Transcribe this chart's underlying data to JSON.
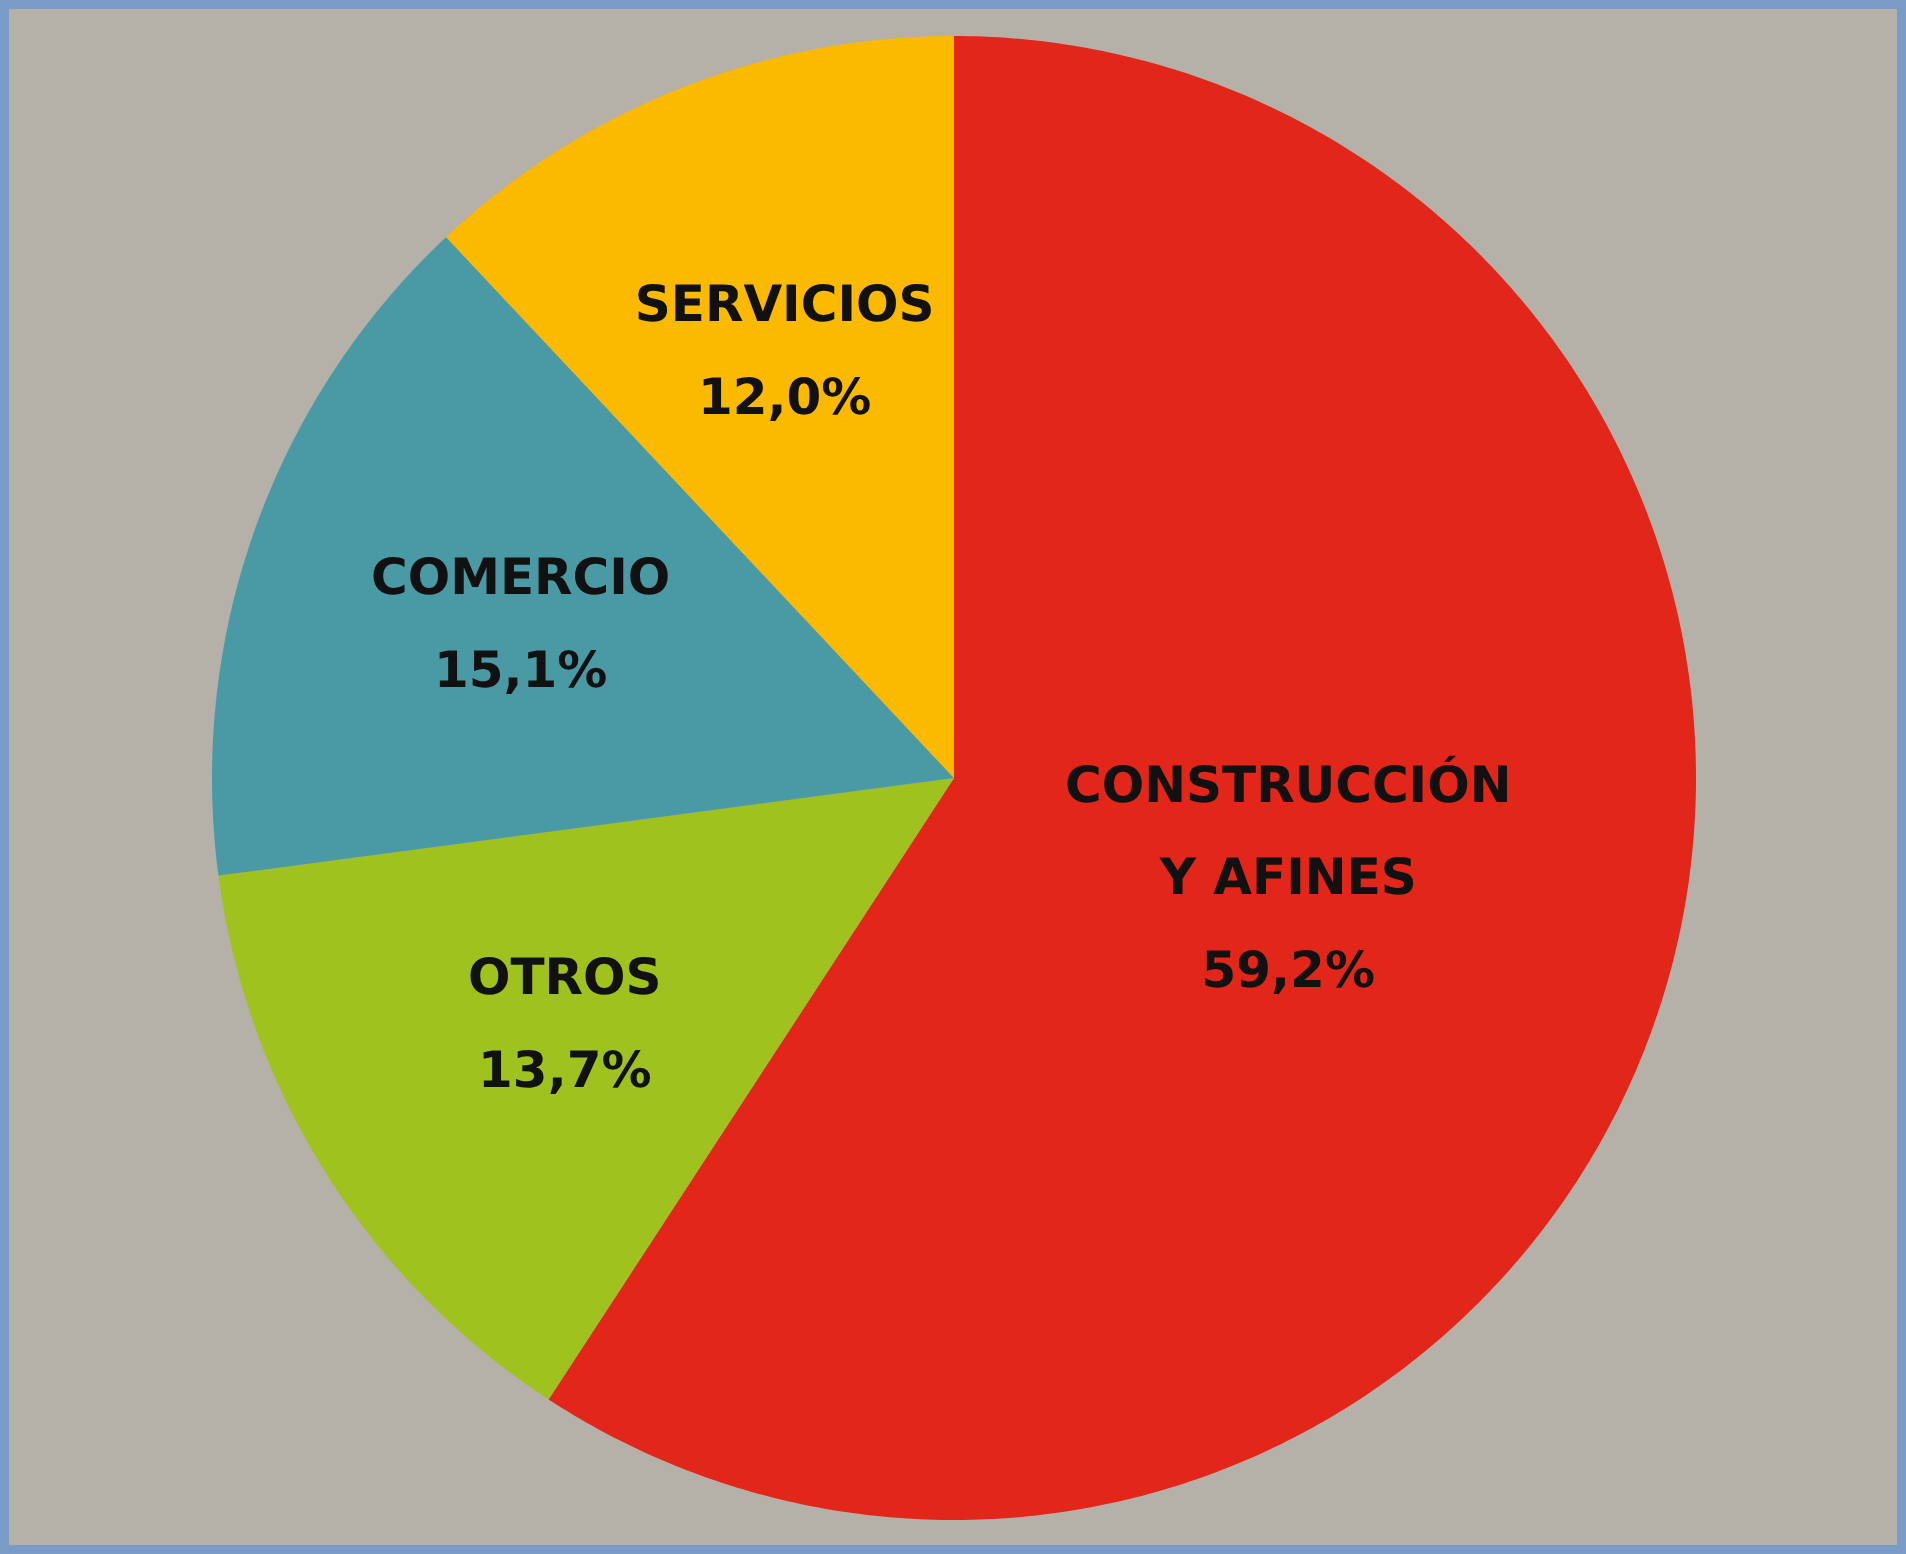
{
  "chart_data": {
    "type": "pie",
    "categories": [
      "CONSTRUCCIÓN Y AFINES",
      "OTROS",
      "COMERCIO",
      "SERVICIOS"
    ],
    "values": [
      59.2,
      13.7,
      15.1,
      12.0
    ],
    "colors": [
      "#e3261a",
      "#a0c21e",
      "#4a9aa6",
      "#fbb900"
    ],
    "value_labels": [
      "59,2%",
      "13,7%",
      "15,1%",
      "12,0%"
    ],
    "legend": false
  }
}
